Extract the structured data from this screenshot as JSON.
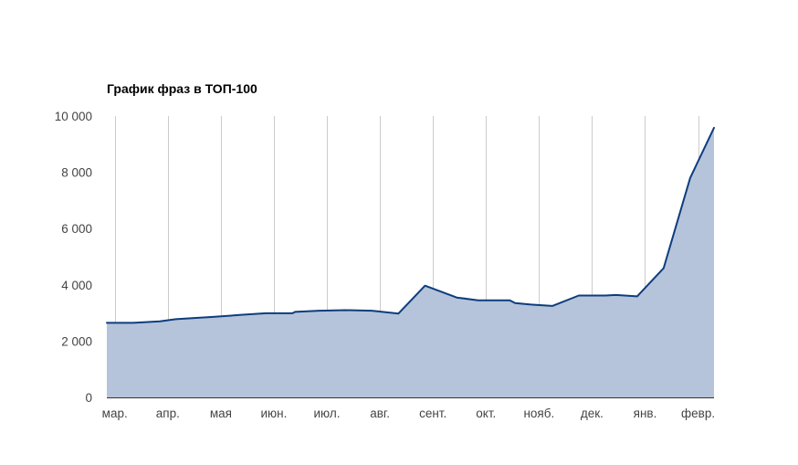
{
  "chart_data": {
    "type": "area",
    "title": "График фраз в ТОП-100",
    "xlabel": "",
    "ylabel": "",
    "ylim": [
      0,
      10000
    ],
    "yticks": [
      0,
      2000,
      4000,
      6000,
      8000,
      10000
    ],
    "ytick_labels": [
      "0",
      "2 000",
      "4 000",
      "6 000",
      "8 000",
      "10 000"
    ],
    "xlim": [
      0,
      11.45
    ],
    "xticks": [
      0.15,
      1.15,
      2.15,
      3.15,
      4.15,
      5.15,
      6.15,
      7.15,
      8.15,
      9.15,
      10.15,
      11.15
    ],
    "xtick_labels": [
      "мар.",
      "апр.",
      "мая",
      "июн.",
      "июл.",
      "авг.",
      "сент.",
      "окт.",
      "нояб.",
      "дек.",
      "янв.",
      "февр."
    ],
    "grid": true,
    "legend": "none",
    "colors": {
      "line": "#0d3d7e",
      "fill": "#b5c4da",
      "grid": "#cccccc",
      "axis": "#333333"
    },
    "series": [
      {
        "x": [
          0,
          0.5,
          1.0,
          1.3,
          2.0,
          2.5,
          3.0,
          3.5,
          3.55,
          4.0,
          4.5,
          5.0,
          5.5,
          6.0,
          6.6,
          7.0,
          7.6,
          7.7,
          8.0,
          8.4,
          8.9,
          9.4,
          9.6,
          10.0,
          10.5,
          11.0,
          11.45
        ],
        "values": [
          2650,
          2650,
          2700,
          2780,
          2860,
          2930,
          2990,
          2990,
          3040,
          3080,
          3100,
          3080,
          2980,
          3970,
          3550,
          3450,
          3450,
          3350,
          3300,
          3250,
          3620,
          3620,
          3640,
          3590,
          4590,
          7800,
          9580
        ]
      }
    ]
  }
}
